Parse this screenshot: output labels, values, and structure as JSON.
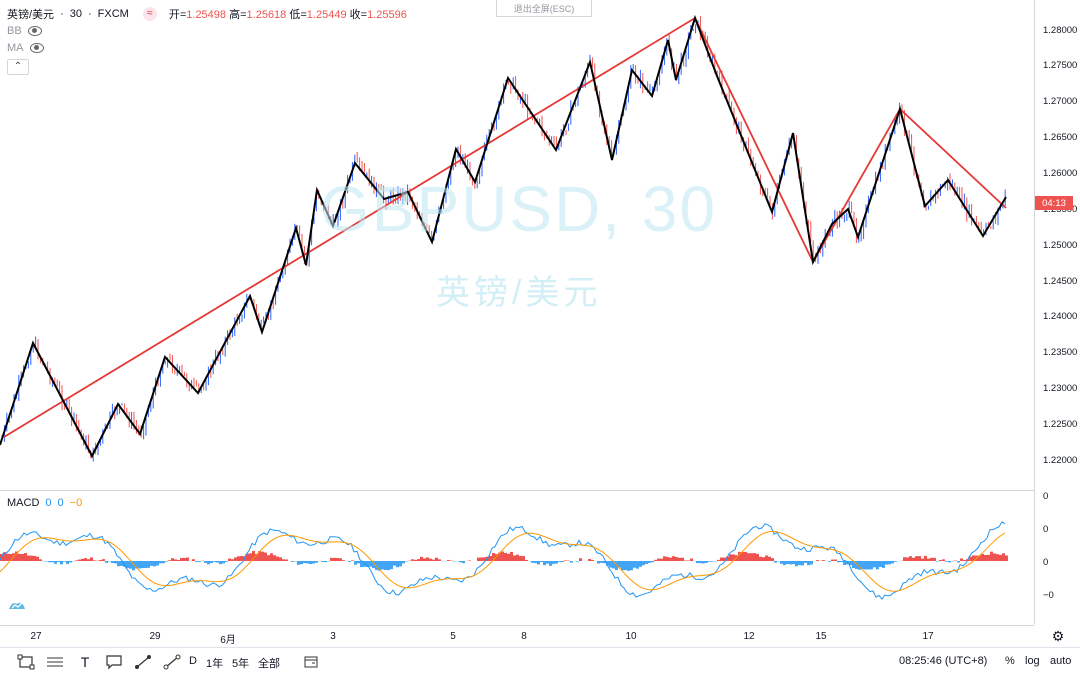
{
  "header": {
    "symbol_name": "英镑/美元",
    "interval": "30",
    "broker": "FXCM",
    "open_label": "开=",
    "open": "1.25498",
    "high_label": "高=",
    "high": "1.25618",
    "low_label": "低=",
    "low": "1.25449",
    "close_label": "收=",
    "close": "1.25596"
  },
  "indicators": {
    "bb_label": "BB",
    "ma_label": "MA",
    "collapse_icon": "chevron-up-icon"
  },
  "fullscreen_hint": "退出全屏(ESC)",
  "watermark": {
    "ticker": "GBPUSD, 30",
    "name": "英镑/美元"
  },
  "price_axis": {
    "ticks": [
      "1.28000",
      "1.27500",
      "1.27000",
      "1.26500",
      "1.26000",
      "1.25500",
      "1.25000",
      "1.24500",
      "1.24000",
      "1.23500",
      "1.23000",
      "1.22500",
      "1.22000"
    ],
    "current_tag": "04:13"
  },
  "macd": {
    "label": "MACD",
    "v1": "0",
    "v2": "0",
    "v3": "−0",
    "axis_ticks": [
      "0",
      "0",
      "0",
      "−0"
    ]
  },
  "time_axis": {
    "labels": [
      "27",
      "29",
      "6月",
      "3",
      "5",
      "8",
      "10",
      "12",
      "15",
      "17"
    ]
  },
  "bottom_bar": {
    "ranges": [
      "D",
      "1年",
      "5年",
      "全部"
    ],
    "clock": "08:25:46 (UTC+8)",
    "percent": "%",
    "log": "log",
    "auto": "auto"
  },
  "colors": {
    "up": "#2962ff",
    "down": "#ef5350",
    "zigzag_black": "#000000",
    "zigzag_red": "#e53935",
    "macd_blue": "#2196f3",
    "macd_orange": "#ff9800",
    "hist_pos": "#ef5350",
    "hist_neg": "#42a5f5"
  }
}
